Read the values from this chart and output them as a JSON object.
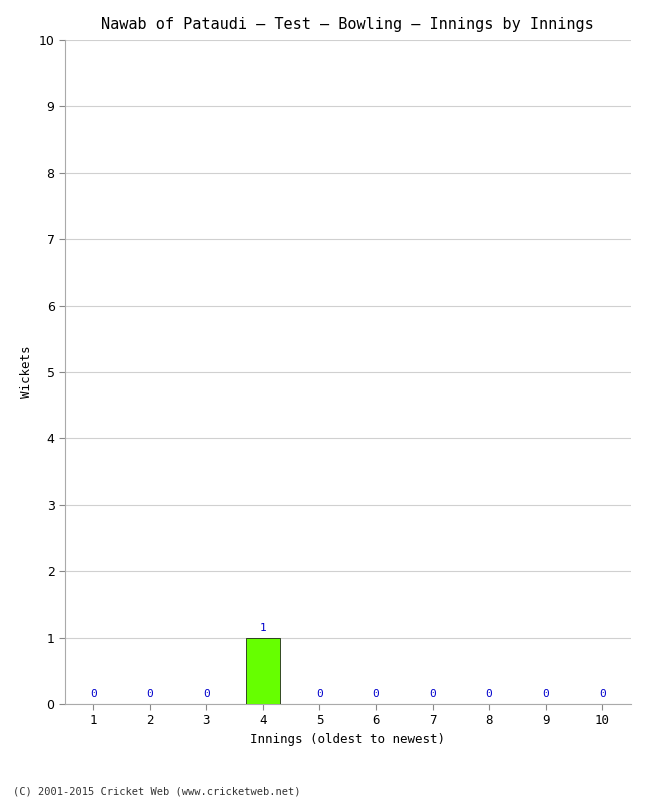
{
  "title": "Nawab of Pataudi – Test – Bowling – Innings by Innings",
  "xlabel": "Innings (oldest to newest)",
  "ylabel": "Wickets",
  "categories": [
    1,
    2,
    3,
    4,
    5,
    6,
    7,
    8,
    9,
    10
  ],
  "values": [
    0,
    0,
    0,
    1,
    0,
    0,
    0,
    0,
    0,
    0
  ],
  "bar_color_normal": "#66ff00",
  "ylim": [
    0,
    10
  ],
  "yticks": [
    0,
    1,
    2,
    3,
    4,
    5,
    6,
    7,
    8,
    9,
    10
  ],
  "background_color": "#ffffff",
  "plot_bg_color": "#ffffff",
  "grid_color": "#d0d0d0",
  "label_color": "#0000cc",
  "title_fontsize": 11,
  "axis_fontsize": 9,
  "tick_fontsize": 9,
  "label_fontsize": 8,
  "copyright": "(C) 2001-2015 Cricket Web (www.cricketweb.net)"
}
